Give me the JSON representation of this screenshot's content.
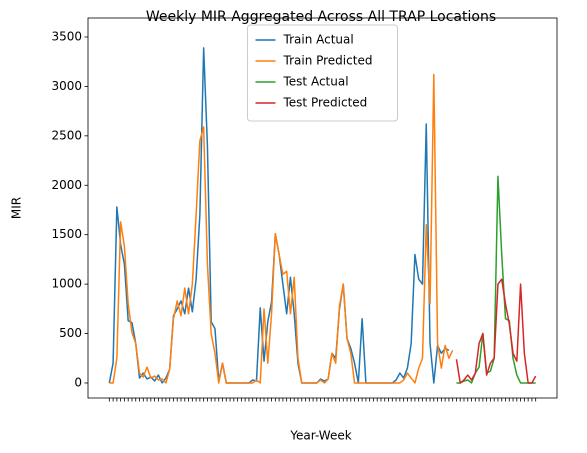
{
  "chart_data": {
    "type": "line",
    "title": "Weekly MIR Aggregated Across All TRAP Locations",
    "x_label": "Year-Week",
    "y_label": "MIR",
    "legend": "upper center",
    "ylim": [
      -152,
      3692
    ],
    "yticks": [
      0,
      500,
      1000,
      1500,
      2000,
      2500,
      3000,
      3500
    ],
    "categories": [
      null,
      null,
      null,
      null,
      null,
      null,
      null,
      null,
      null,
      null,
      null,
      null,
      null,
      null,
      null,
      null,
      null,
      null,
      null,
      null,
      null,
      null,
      null,
      null,
      null,
      null,
      null,
      null,
      null,
      null,
      null,
      null,
      null,
      null,
      null,
      null,
      null,
      null,
      null,
      null,
      null,
      null,
      null,
      null,
      null,
      null,
      null,
      null,
      null,
      null,
      null,
      null,
      null,
      null,
      null,
      null,
      null,
      null,
      null,
      null,
      null,
      null,
      null,
      null,
      null,
      null,
      null,
      null,
      null,
      null,
      null,
      null,
      null,
      null,
      null,
      null,
      null,
      null,
      null,
      null,
      null,
      null,
      null,
      null,
      null,
      null,
      null,
      null,
      null,
      null,
      null,
      null,
      null,
      null,
      null,
      null,
      null,
      null,
      null,
      null,
      null,
      null,
      null,
      null,
      null,
      null,
      null,
      null,
      null,
      null,
      null,
      null,
      null,
      null
    ],
    "series": [
      {
        "name": "Train Actual",
        "color": "#1f77b4",
        "values": [
          0,
          200,
          1780,
          1400,
          1200,
          630,
          610,
          400,
          50,
          100,
          40,
          60,
          20,
          80,
          0,
          50,
          140,
          680,
          750,
          830,
          700,
          960,
          720,
          1050,
          1700,
          3390,
          2400,
          620,
          550,
          20,
          200,
          0,
          0,
          0,
          0,
          0,
          0,
          0,
          30,
          20,
          760,
          220,
          620,
          820,
          1510,
          1300,
          1000,
          700,
          1070,
          700,
          200,
          0,
          0,
          0,
          0,
          0,
          40,
          20,
          40,
          300,
          250,
          750,
          1000,
          450,
          350,
          200,
          0,
          650,
          0,
          0,
          0,
          0,
          0,
          0,
          0,
          0,
          30,
          100,
          50,
          150,
          400,
          1300,
          1050,
          1000,
          2620,
          400,
          0,
          380,
          300,
          350,
          330,
          null,
          null,
          null,
          null,
          null,
          null,
          null,
          null,
          null,
          null,
          null,
          null,
          null,
          null,
          null,
          null,
          null,
          null,
          null,
          null,
          null,
          null,
          null
        ]
      },
      {
        "name": "Train Predicted",
        "color": "#ff7f0e",
        "values": [
          0,
          0,
          250,
          1630,
          1380,
          800,
          510,
          400,
          100,
          60,
          160,
          50,
          70,
          30,
          40,
          0,
          140,
          650,
          830,
          680,
          960,
          700,
          1000,
          1700,
          2450,
          2590,
          1200,
          500,
          300,
          0,
          200,
          0,
          0,
          0,
          0,
          0,
          0,
          0,
          0,
          30,
          0,
          750,
          200,
          700,
          1510,
          1300,
          1100,
          1130,
          700,
          1070,
          250,
          0,
          0,
          0,
          0,
          0,
          30,
          0,
          40,
          300,
          200,
          780,
          1000,
          450,
          300,
          0,
          0,
          0,
          0,
          0,
          0,
          0,
          0,
          0,
          0,
          0,
          0,
          0,
          30,
          100,
          50,
          0,
          150,
          250,
          1600,
          800,
          3120,
          400,
          150,
          380,
          250,
          330,
          null,
          null,
          null,
          null,
          null,
          null,
          null,
          null,
          null,
          null,
          null,
          null,
          null,
          null,
          null,
          null,
          null,
          null,
          null,
          null,
          null,
          null
        ]
      },
      {
        "name": "Test Actual",
        "color": "#2ca02c",
        "values": [
          null,
          null,
          null,
          null,
          null,
          null,
          null,
          null,
          null,
          null,
          null,
          null,
          null,
          null,
          null,
          null,
          null,
          null,
          null,
          null,
          null,
          null,
          null,
          null,
          null,
          null,
          null,
          null,
          null,
          null,
          null,
          null,
          null,
          null,
          null,
          null,
          null,
          null,
          null,
          null,
          null,
          null,
          null,
          null,
          null,
          null,
          null,
          null,
          null,
          null,
          null,
          null,
          null,
          null,
          null,
          null,
          null,
          null,
          null,
          null,
          null,
          null,
          null,
          null,
          null,
          null,
          null,
          null,
          null,
          null,
          null,
          null,
          null,
          null,
          null,
          null,
          null,
          null,
          null,
          null,
          null,
          null,
          null,
          null,
          null,
          null,
          null,
          null,
          null,
          null,
          null,
          null,
          0,
          0,
          20,
          30,
          0,
          100,
          160,
          500,
          100,
          120,
          250,
          2090,
          1300,
          650,
          630,
          250,
          80,
          0,
          0,
          0,
          0,
          0
        ]
      },
      {
        "name": "Test Predicted",
        "color": "#d62728",
        "values": [
          null,
          null,
          null,
          null,
          null,
          null,
          null,
          null,
          null,
          null,
          null,
          null,
          null,
          null,
          null,
          null,
          null,
          null,
          null,
          null,
          null,
          null,
          null,
          null,
          null,
          null,
          null,
          null,
          null,
          null,
          null,
          null,
          null,
          null,
          null,
          null,
          null,
          null,
          null,
          null,
          null,
          null,
          null,
          null,
          null,
          null,
          null,
          null,
          null,
          null,
          null,
          null,
          null,
          null,
          null,
          null,
          null,
          null,
          null,
          null,
          null,
          null,
          null,
          null,
          null,
          null,
          null,
          null,
          null,
          null,
          null,
          null,
          null,
          null,
          null,
          null,
          null,
          null,
          null,
          null,
          null,
          null,
          null,
          null,
          null,
          null,
          null,
          null,
          null,
          null,
          null,
          null,
          240,
          0,
          30,
          80,
          30,
          100,
          400,
          500,
          80,
          200,
          250,
          1000,
          1050,
          800,
          600,
          300,
          220,
          1000,
          300,
          0,
          0,
          70
        ]
      }
    ]
  }
}
